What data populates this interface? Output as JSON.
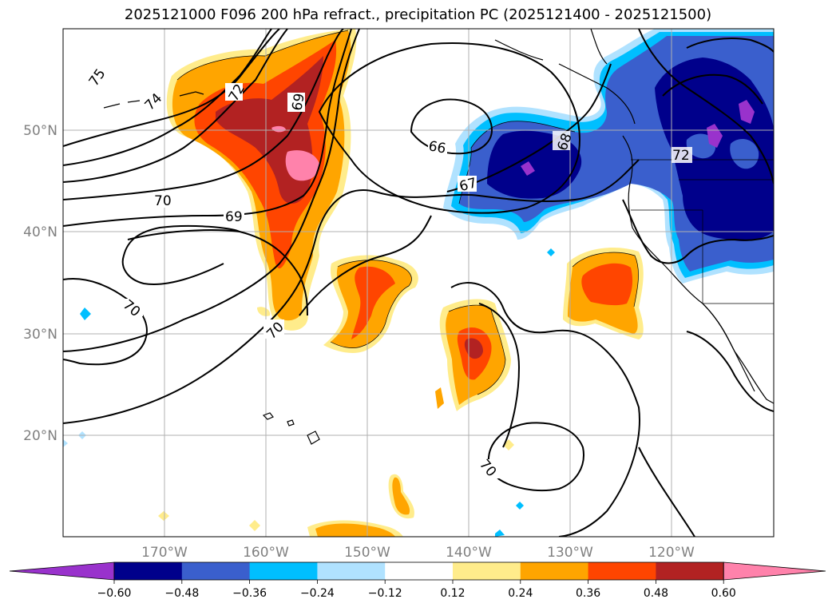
{
  "title": "2025121000 F096 200 hPa refract., precipitation PC (2025121400 - 2025121500)",
  "map": {
    "lon_range": [
      -180,
      -110
    ],
    "lat_range": [
      10,
      60
    ],
    "lat_ticks": [
      {
        "value": 50,
        "label": "50°N"
      },
      {
        "value": 40,
        "label": "40°N"
      },
      {
        "value": 30,
        "label": "30°N"
      },
      {
        "value": 20,
        "label": "20°N"
      }
    ],
    "lon_ticks": [
      {
        "value": -170,
        "label": "170°W"
      },
      {
        "value": -160,
        "label": "160°W"
      },
      {
        "value": -150,
        "label": "150°W"
      },
      {
        "value": -140,
        "label": "140°W"
      },
      {
        "value": -130,
        "label": "130°W"
      },
      {
        "value": -120,
        "label": "120°W"
      }
    ],
    "gridlines": true,
    "contour_labels": [
      "75",
      "74",
      "72",
      "69",
      "66",
      "67",
      "68",
      "70",
      "69",
      "70",
      "70",
      "70",
      "72"
    ]
  },
  "colorbar": {
    "ticks": [
      "−0.60",
      "−0.48",
      "−0.36",
      "−0.24",
      "−0.12",
      "0.12",
      "0.24",
      "0.36",
      "0.48",
      "0.60"
    ],
    "colors": [
      "#9932cc",
      "#00008b",
      "#3a5fcd",
      "#00bfff",
      "#b0e2ff",
      "#ffffff",
      "#ffec8b",
      "#ffa500",
      "#ff4500",
      "#b22222",
      "#ff82ab"
    ],
    "extend": "both"
  }
}
